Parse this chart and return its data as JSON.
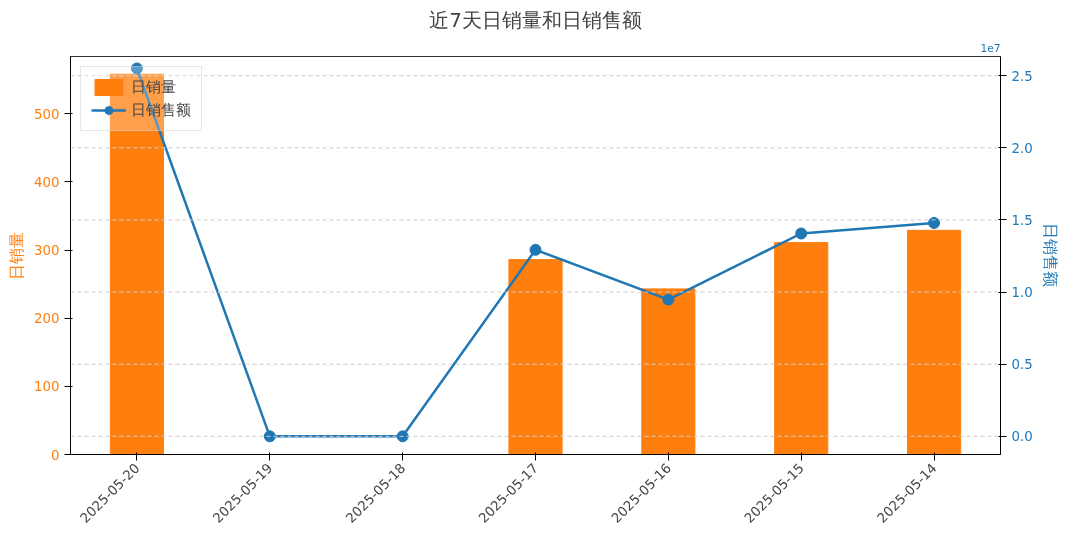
{
  "chart_data": {
    "type": "bar",
    "title": "近7天日销量和日销售额",
    "ylabel": "日销量",
    "y2label": "日销售额",
    "categories": [
      "2025-05-20",
      "2025-05-19",
      "2025-05-18",
      "2025-05-17",
      "2025-05-16",
      "2025-05-15",
      "2025-05-14"
    ],
    "series": [
      {
        "name": "日销量",
        "color": "#ff7f0e",
        "values": [
          558,
          0,
          0,
          286,
          243,
          311,
          329
        ]
      },
      {
        "name": "日销售额",
        "type": "line",
        "axis": "y2",
        "color": "#1f77b4",
        "marker": "circle",
        "line_style": "solid",
        "values": [
          2.55,
          0,
          0,
          1.293,
          0.948,
          1.406,
          1.479
        ]
      }
    ],
    "ylim": [
      0,
      584
    ],
    "yticks": [
      0,
      100,
      200,
      300,
      400,
      500
    ],
    "y2lim": [
      -0.126,
      2.633
    ],
    "y2ticks": [
      {
        "value": 0,
        "label": "0.0"
      },
      0.5,
      {
        "value": 1,
        "label": "1.0"
      },
      1.5,
      {
        "value": 2,
        "label": "2.0"
      },
      2.5
    ],
    "annotations": [
      "1e7"
    ],
    "grid": "y2",
    "legend": "top left"
  }
}
